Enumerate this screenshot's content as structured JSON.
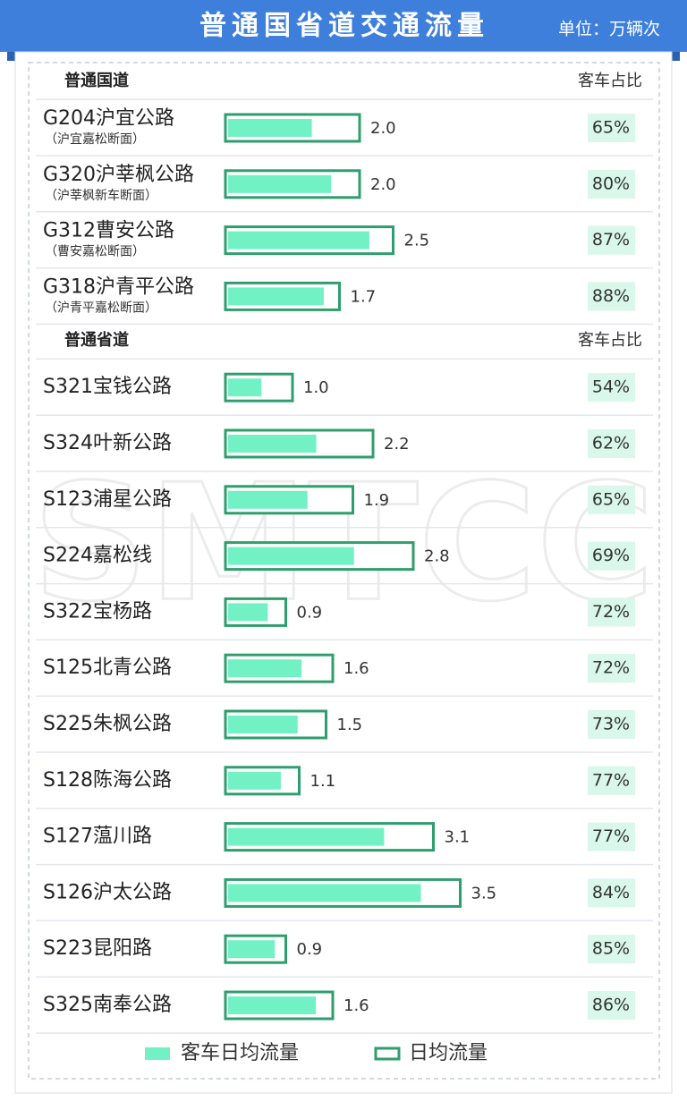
{
  "chart_data": {
    "type": "bar",
    "title": "普通国省道交通流量",
    "unit": "单位：万辆次",
    "watermark": "SMTCC",
    "fill_color": "#72f2c4",
    "outline_color": "#2f9e6e",
    "legend": [
      {
        "name": "客车日均流量"
      },
      {
        "name": "日均流量"
      }
    ],
    "groups": [
      {
        "name": "普通国道",
        "share_header": "客车占比",
        "categories": [
          "G204沪宜公路",
          "G320沪莘枫公路",
          "G312曹安公路",
          "G318沪青平公路"
        ],
        "subtitles": [
          "（沪宜嘉松断面）",
          "（沪莘枫新车断面）",
          "（曹安嘉松断面）",
          "（沪青平嘉松断面）"
        ],
        "values": [
          2,
          2,
          2.5,
          1.7
        ],
        "value_labels": [
          "2.0",
          "2.0",
          "2.5",
          "1.7"
        ],
        "shares": [
          65,
          80,
          87,
          88
        ],
        "share_labels": [
          "65%",
          "80%",
          "87%",
          "88%"
        ]
      },
      {
        "name": "普通省道",
        "share_header": "客车占比",
        "categories": [
          "S321宝钱公路",
          "S324叶新公路",
          "S123浦星公路",
          "S224嘉松线",
          "S322宝杨路",
          "S125北青公路",
          "S225朱枫公路",
          "S128陈海公路",
          "S127蕰川路",
          "S126沪太公路",
          "S223昆阳路",
          "S325南奉公路"
        ],
        "values": [
          1,
          2.2,
          1.9,
          2.8,
          0.9,
          1.6,
          1.5,
          1.1,
          3.1,
          3.5,
          0.9,
          1.6
        ],
        "value_labels": [
          "1.0",
          "2.2",
          "1.9",
          "2.8",
          "0.9",
          "1.6",
          "1.5",
          "1.1",
          "3.1",
          "3.5",
          "0.9",
          "1.6"
        ],
        "shares": [
          54,
          62,
          65,
          69,
          72,
          72,
          73,
          77,
          77,
          84,
          85,
          86
        ],
        "share_labels": [
          "54%",
          "62%",
          "65%",
          "69%",
          "72%",
          "72%",
          "73%",
          "77%",
          "77%",
          "84%",
          "85%",
          "86%"
        ]
      }
    ]
  }
}
